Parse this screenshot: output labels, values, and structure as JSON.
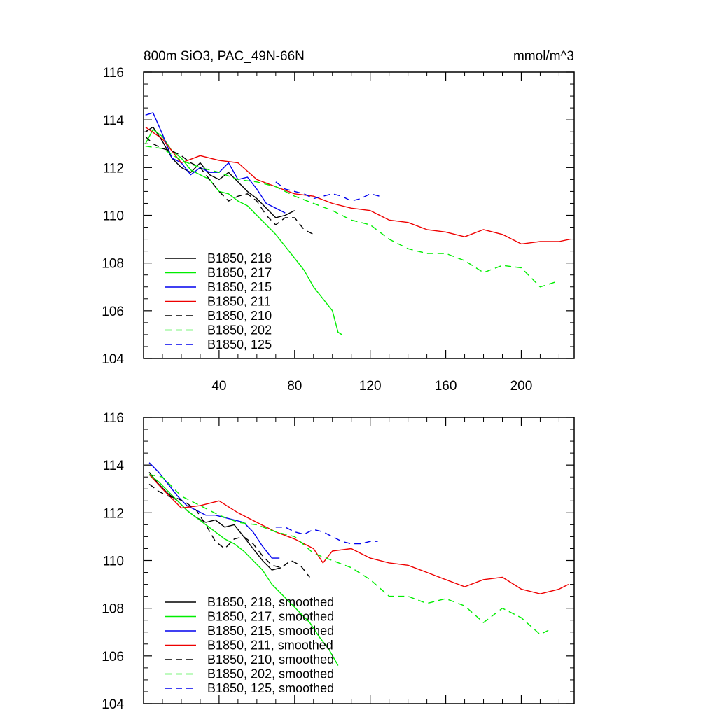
{
  "figure": {
    "title_left": "800m SiO3, PAC_49N-66N",
    "title_right": "mmol/m^3"
  },
  "chart_data": [
    {
      "type": "line",
      "panel": "top",
      "xlim": [
        0,
        228
      ],
      "ylim": [
        104,
        116
      ],
      "x_ticks": [
        40,
        80,
        120,
        160,
        200
      ],
      "x_tick_labels": [
        "40",
        "80",
        "120",
        "160",
        "200"
      ],
      "y_ticks": [
        104,
        106,
        108,
        110,
        112,
        114,
        116
      ],
      "y_tick_labels": [
        "104",
        "106",
        "108",
        "110",
        "112",
        "114",
        "116"
      ],
      "legend_position": "bottom-left",
      "series": [
        {
          "name": "B1850, 218",
          "color": "#000000",
          "dash": "solid",
          "x": [
            1,
            5,
            10,
            15,
            20,
            25,
            30,
            35,
            40,
            45,
            50,
            55,
            60,
            65,
            70,
            75,
            80
          ],
          "y": [
            113.5,
            113.7,
            113.1,
            112.4,
            112.0,
            111.8,
            112.2,
            111.7,
            111.5,
            111.8,
            111.4,
            111.0,
            110.7,
            110.3,
            109.9,
            110.0,
            110.2
          ]
        },
        {
          "name": "B1850, 217",
          "color": "#00ee00",
          "dash": "solid",
          "x": [
            1,
            5,
            10,
            15,
            20,
            25,
            30,
            35,
            40,
            45,
            50,
            55,
            60,
            65,
            70,
            75,
            80,
            85,
            90,
            95,
            100,
            103,
            105
          ],
          "y": [
            113.0,
            113.6,
            113.3,
            112.7,
            112.4,
            111.9,
            111.7,
            111.5,
            111.0,
            110.9,
            110.6,
            110.4,
            110.0,
            109.6,
            109.2,
            108.7,
            108.2,
            107.7,
            107.0,
            106.5,
            106.0,
            105.1,
            105.0
          ]
        },
        {
          "name": "B1850, 215",
          "color": "#0000ee",
          "dash": "solid",
          "x": [
            1,
            5,
            10,
            15,
            20,
            25,
            30,
            35,
            40,
            45,
            50,
            55,
            60,
            65,
            70,
            75
          ],
          "y": [
            114.2,
            114.3,
            113.4,
            112.4,
            112.2,
            111.7,
            112.0,
            111.8,
            111.8,
            112.2,
            111.5,
            111.6,
            111.1,
            110.5,
            110.3,
            110.1
          ]
        },
        {
          "name": "B1850, 211",
          "color": "#ee0000",
          "dash": "solid",
          "x": [
            1,
            10,
            20,
            30,
            40,
            50,
            60,
            70,
            80,
            90,
            100,
            110,
            120,
            130,
            140,
            150,
            160,
            170,
            180,
            190,
            200,
            210,
            220,
            226
          ],
          "y": [
            113.7,
            113.2,
            112.2,
            112.5,
            112.3,
            112.2,
            111.5,
            111.2,
            110.9,
            110.8,
            110.5,
            110.3,
            110.2,
            109.8,
            109.7,
            109.4,
            109.3,
            109.1,
            109.4,
            109.2,
            108.8,
            108.9,
            108.9,
            109.0
          ]
        },
        {
          "name": "B1850, 210",
          "color": "#000000",
          "dash": "dashed",
          "x": [
            1,
            5,
            10,
            15,
            20,
            25,
            30,
            35,
            40,
            45,
            50,
            55,
            60,
            65,
            70,
            75,
            80,
            85,
            90
          ],
          "y": [
            113.3,
            113.0,
            112.8,
            112.7,
            112.5,
            112.2,
            112.0,
            111.5,
            111.0,
            110.6,
            110.8,
            110.9,
            110.6,
            110.0,
            109.6,
            109.9,
            109.9,
            109.4,
            109.2
          ]
        },
        {
          "name": "B1850, 202",
          "color": "#00ee00",
          "dash": "dashed",
          "x": [
            1,
            10,
            20,
            30,
            40,
            50,
            60,
            70,
            80,
            90,
            100,
            110,
            120,
            130,
            140,
            150,
            160,
            170,
            180,
            190,
            200,
            210,
            218
          ],
          "y": [
            112.9,
            112.8,
            112.3,
            112.0,
            111.8,
            111.5,
            111.4,
            111.2,
            110.8,
            110.5,
            110.2,
            109.8,
            109.6,
            109.0,
            108.6,
            108.4,
            108.4,
            108.1,
            107.6,
            107.9,
            107.8,
            107.0,
            107.2
          ]
        },
        {
          "name": "B1850, 125",
          "color": "#0000ee",
          "dash": "dashed",
          "x": [
            70,
            75,
            80,
            85,
            90,
            95,
            100,
            105,
            110,
            115,
            120,
            125
          ],
          "y": [
            111.4,
            111.1,
            111.0,
            110.9,
            110.7,
            110.8,
            110.9,
            110.8,
            110.6,
            110.7,
            110.9,
            110.8
          ]
        }
      ]
    },
    {
      "type": "line",
      "panel": "bottom",
      "xlim": [
        0,
        228
      ],
      "ylim": [
        104,
        116
      ],
      "x_ticks": [
        40,
        80,
        120,
        160,
        200
      ],
      "x_tick_labels": [],
      "y_ticks": [
        104,
        106,
        108,
        110,
        112,
        114,
        116
      ],
      "y_tick_labels": [
        "104",
        "106",
        "108",
        "110",
        "112",
        "114",
        "116"
      ],
      "legend_position": "bottom-left",
      "series": [
        {
          "name": "B1850, 218, smoothed",
          "color": "#000000",
          "dash": "solid",
          "x": [
            3,
            8,
            13,
            18,
            23,
            28,
            33,
            38,
            43,
            48,
            53,
            58,
            63,
            68,
            73
          ],
          "y": [
            113.7,
            113.2,
            112.8,
            112.5,
            112.1,
            111.8,
            111.6,
            111.7,
            111.4,
            111.5,
            111.0,
            110.5,
            110.0,
            109.6,
            109.7
          ]
        },
        {
          "name": "B1850, 217, smoothed",
          "color": "#00ee00",
          "dash": "solid",
          "x": [
            3,
            8,
            13,
            18,
            23,
            28,
            33,
            38,
            43,
            48,
            53,
            58,
            63,
            68,
            73,
            78,
            83,
            88,
            93,
            98,
            103
          ],
          "y": [
            113.6,
            113.3,
            112.9,
            112.5,
            112.1,
            111.8,
            111.5,
            111.2,
            110.9,
            110.7,
            110.4,
            110.0,
            109.6,
            109.0,
            108.6,
            108.2,
            107.8,
            107.4,
            106.8,
            106.3,
            105.6
          ]
        },
        {
          "name": "B1850, 215, smoothed",
          "color": "#0000ee",
          "dash": "solid",
          "x": [
            3,
            8,
            13,
            18,
            23,
            28,
            33,
            38,
            43,
            48,
            53,
            58,
            63,
            68,
            72
          ],
          "y": [
            114.1,
            113.7,
            113.2,
            112.7,
            112.3,
            112.1,
            111.9,
            111.9,
            111.8,
            111.7,
            111.6,
            111.2,
            110.6,
            110.1,
            110.1
          ]
        },
        {
          "name": "B1850, 211, smoothed",
          "color": "#ee0000",
          "dash": "solid",
          "x": [
            3,
            10,
            20,
            30,
            40,
            50,
            60,
            70,
            80,
            90,
            95,
            100,
            110,
            120,
            130,
            140,
            150,
            160,
            170,
            180,
            190,
            200,
            210,
            220,
            225
          ],
          "y": [
            113.6,
            113.0,
            112.2,
            112.3,
            112.5,
            112.0,
            111.6,
            111.2,
            110.9,
            110.5,
            109.9,
            110.4,
            110.5,
            110.1,
            109.9,
            109.8,
            109.5,
            109.2,
            108.9,
            109.2,
            109.3,
            108.8,
            108.6,
            108.8,
            109.0
          ]
        },
        {
          "name": "B1850, 210, smoothed",
          "color": "#000000",
          "dash": "dashed",
          "x": [
            3,
            8,
            13,
            18,
            23,
            28,
            33,
            38,
            43,
            48,
            53,
            58,
            63,
            68,
            73,
            78,
            83,
            88
          ],
          "y": [
            113.2,
            112.9,
            112.7,
            112.6,
            112.4,
            112.1,
            111.5,
            110.8,
            110.5,
            110.9,
            111.0,
            110.7,
            110.2,
            109.8,
            109.7,
            110.0,
            109.8,
            109.3
          ]
        },
        {
          "name": "B1850, 202, smoothed",
          "color": "#00ee00",
          "dash": "dashed",
          "x": [
            3,
            10,
            20,
            30,
            40,
            50,
            60,
            70,
            80,
            90,
            100,
            110,
            120,
            130,
            140,
            150,
            160,
            170,
            180,
            190,
            200,
            210,
            215
          ],
          "y": [
            113.6,
            113.5,
            112.7,
            112.3,
            111.9,
            111.6,
            111.5,
            111.2,
            111.0,
            110.3,
            110.0,
            109.7,
            109.2,
            108.5,
            108.5,
            108.2,
            108.4,
            108.1,
            107.4,
            108.0,
            107.6,
            106.9,
            107.1
          ]
        },
        {
          "name": "B1850, 125, smoothed",
          "color": "#0000ee",
          "dash": "dashed",
          "x": [
            70,
            75,
            80,
            85,
            90,
            95,
            100,
            105,
            110,
            115,
            120,
            124
          ],
          "y": [
            111.4,
            111.4,
            111.2,
            111.1,
            111.3,
            111.2,
            111.0,
            110.8,
            110.7,
            110.7,
            110.8,
            110.8
          ]
        }
      ]
    }
  ]
}
